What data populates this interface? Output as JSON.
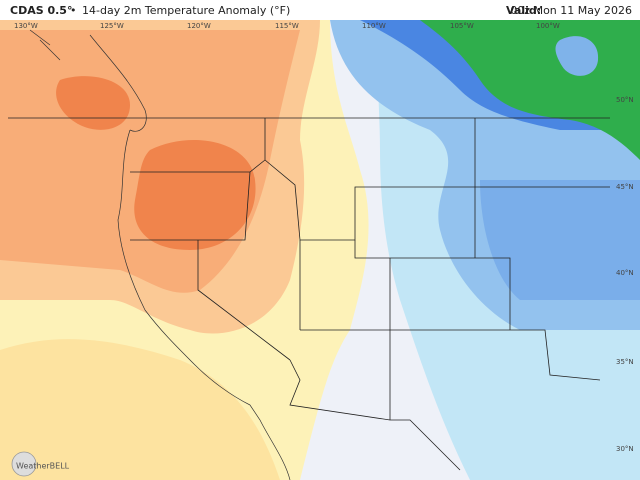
{
  "header": {
    "title": "CDAS 0.5°",
    "separator": "•",
    "subtitle": "14-day 2m Temperature Anomaly (°F)",
    "valid_label": "Valid:",
    "valid_time": "00z Mon 11 May 2026"
  },
  "map": {
    "longitude_labels": [
      "130°W",
      "125°W",
      "120°W",
      "115°W",
      "110°W",
      "105°W",
      "100°W"
    ],
    "latitude_labels": [
      "50°N",
      "45°N",
      "40°N",
      "35°N",
      "30°N"
    ]
  },
  "logo": {
    "text": "WeatherBELL"
  }
}
